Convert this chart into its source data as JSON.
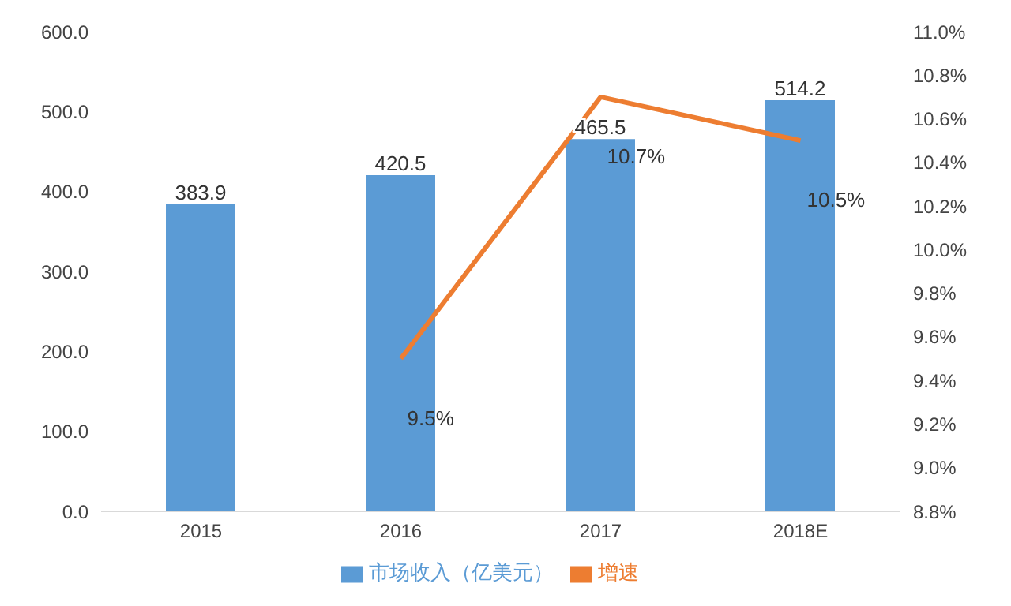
{
  "chart_data": {
    "type": "bar",
    "categories": [
      "2015",
      "2016",
      "2017",
      "2018E"
    ],
    "series": [
      {
        "name": "市场收入（亿美元）",
        "color": "#5b9bd5",
        "values": [
          383.9,
          420.5,
          465.5,
          514.2
        ],
        "value_labels": [
          "383.9",
          "420.5",
          "465.5",
          "514.2"
        ]
      },
      {
        "name": "增速",
        "type": "line",
        "axis": "y2",
        "color": "#ed7d31",
        "values": [
          null,
          9.5,
          10.7,
          10.5
        ],
        "value_labels": [
          null,
          "9.5%",
          "10.7%",
          "10.5%"
        ]
      }
    ],
    "ylim": [
      0,
      600
    ],
    "yticks": [
      {
        "value": 0,
        "label": "0.0"
      },
      {
        "value": 100,
        "label": "100.0"
      },
      {
        "value": 200,
        "label": "200.0"
      },
      {
        "value": 300,
        "label": "300.0"
      },
      {
        "value": 400,
        "label": "400.0"
      },
      {
        "value": 500,
        "label": "500.0"
      },
      {
        "value": 600,
        "label": "600.0"
      }
    ],
    "y2lim": [
      8.8,
      11.0
    ],
    "y2ticks": [
      {
        "value": 8.8,
        "label": "8.8%"
      },
      {
        "value": 9.0,
        "label": "9.0%"
      },
      {
        "value": 9.2,
        "label": "9.2%"
      },
      {
        "value": 9.4,
        "label": "9.4%"
      },
      {
        "value": 9.6,
        "label": "9.6%"
      },
      {
        "value": 9.8,
        "label": "9.8%"
      },
      {
        "value": 10.0,
        "label": "10.0%"
      },
      {
        "value": 10.2,
        "label": "10.2%"
      },
      {
        "value": 10.4,
        "label": "10.4%"
      },
      {
        "value": 10.6,
        "label": "10.6%"
      },
      {
        "value": 10.8,
        "label": "10.8%"
      },
      {
        "value": 11.0,
        "label": "11.0%"
      }
    ],
    "grid": false,
    "legend": "bottom",
    "marker": "none",
    "line_style": "solid"
  }
}
